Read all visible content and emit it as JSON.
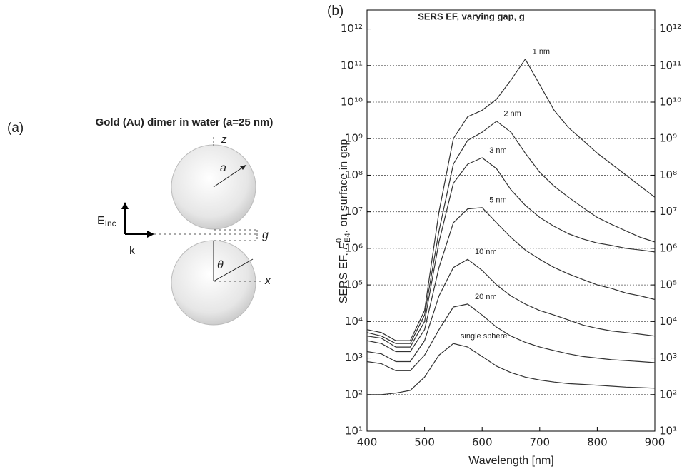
{
  "panel_a": {
    "label": "(a)",
    "title": "Gold (Au) dimer in water (a=25 nm)",
    "z": "z",
    "a": "a",
    "e_field": "E",
    "e_field_sub": "Inc",
    "k": "k",
    "g": "g",
    "theta": "θ",
    "x": "x"
  },
  "chart_data": {
    "type": "line",
    "panel_label": "(b)",
    "title": "SERS EF, varying gap, g",
    "x_label": "Wavelength [nm]",
    "y_label": {
      "prefix": "SERS EF, ",
      "symbol": "F",
      "superscript": "0",
      "subscript": "E4",
      "suffix": ", on surface in gap"
    },
    "log_y": true,
    "grid": true,
    "xlim": [
      400,
      900
    ],
    "xticks": [
      400,
      500,
      600,
      700,
      800,
      900
    ],
    "ylim": [
      10,
      3300000000000.0
    ],
    "yticks": [
      {
        "value": 10,
        "label": "10¹"
      },
      {
        "value": 100,
        "label": "10²"
      },
      {
        "value": 1000,
        "label": "10³"
      },
      {
        "value": 10000,
        "label": "10⁴"
      },
      {
        "value": 100000,
        "label": "10⁵"
      },
      {
        "value": 1000000,
        "label": "10⁶"
      },
      {
        "value": 10000000,
        "label": "10⁷"
      },
      {
        "value": 100000000,
        "label": "10⁸"
      },
      {
        "value": 1000000000,
        "label": "10⁹"
      },
      {
        "value": 10000000000,
        "label": "10¹⁰"
      },
      {
        "value": 100000000000,
        "label": "10¹¹"
      },
      {
        "value": 1000000000000,
        "label": "10¹²"
      }
    ],
    "x": [
      400,
      425,
      450,
      475,
      500,
      525,
      550,
      575,
      600,
      625,
      650,
      675,
      700,
      725,
      750,
      775,
      800,
      825,
      850,
      875,
      900
    ],
    "series": [
      {
        "name": "1 nm",
        "color": "#333333",
        "values": [
          6000,
          5000,
          3000,
          3000,
          20000,
          10000000,
          1000000000,
          4000000000,
          6000000000,
          12000000000,
          40000000000,
          150000000000,
          30000000000,
          6000000000,
          2000000000,
          900000000,
          400000000,
          200000000,
          100000000,
          50000000,
          25000000
        ]
      },
      {
        "name": "2 nm",
        "color": "#333333",
        "values": [
          5000,
          4000,
          2500,
          2500,
          15000,
          3000000,
          200000000,
          900000000,
          1500000000,
          3000000000,
          1500000000,
          400000000,
          120000000,
          50000000,
          25000000,
          13000000,
          7000000,
          4500000,
          3000000,
          2000000,
          1500000
        ]
      },
      {
        "name": "3 nm",
        "color": "#333333",
        "values": [
          4000,
          3500,
          2000,
          2000,
          10000,
          1500000,
          60000000,
          200000000,
          300000000,
          150000000,
          40000000,
          15000000,
          7000000,
          4000000,
          2500000,
          1800000,
          1400000,
          1200000,
          1000000,
          900000,
          800000
        ]
      },
      {
        "name": "5 nm",
        "color": "#333333",
        "values": [
          3000,
          2500,
          1500,
          1500,
          6000,
          300000,
          5000000,
          12000000,
          13000000,
          5000000,
          2000000,
          900000,
          500000,
          300000,
          200000,
          140000,
          100000,
          80000,
          60000,
          50000,
          40000
        ]
      },
      {
        "name": "10 nm",
        "color": "#333333",
        "values": [
          1500,
          1300,
          800,
          800,
          3000,
          50000,
          300000,
          500000,
          250000,
          100000,
          50000,
          30000,
          20000,
          15000,
          11000,
          8000,
          6500,
          5500,
          5000,
          4500,
          4000
        ]
      },
      {
        "name": "20 nm",
        "color": "#333333",
        "values": [
          800,
          700,
          450,
          450,
          1200,
          6000,
          25000,
          30000,
          15000,
          7000,
          4000,
          2700,
          2000,
          1600,
          1300,
          1100,
          1000,
          900,
          850,
          800,
          750
        ]
      },
      {
        "name": "single sphere",
        "color": "#333333",
        "values": [
          100,
          100,
          110,
          130,
          300,
          1200,
          2500,
          2000,
          1100,
          600,
          400,
          300,
          250,
          220,
          200,
          190,
          180,
          170,
          160,
          155,
          150
        ]
      }
    ]
  }
}
